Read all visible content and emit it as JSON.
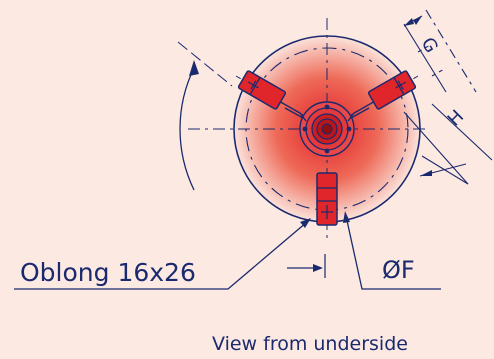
{
  "labels": {
    "oblong": "Oblong 16x26",
    "diameter": "ØF",
    "dim_g": "G",
    "dim_h": "H",
    "caption": "View from underside"
  },
  "colors": {
    "line": "#1b2a6e",
    "body": "#e0252b",
    "background": "#fbe9e2"
  }
}
